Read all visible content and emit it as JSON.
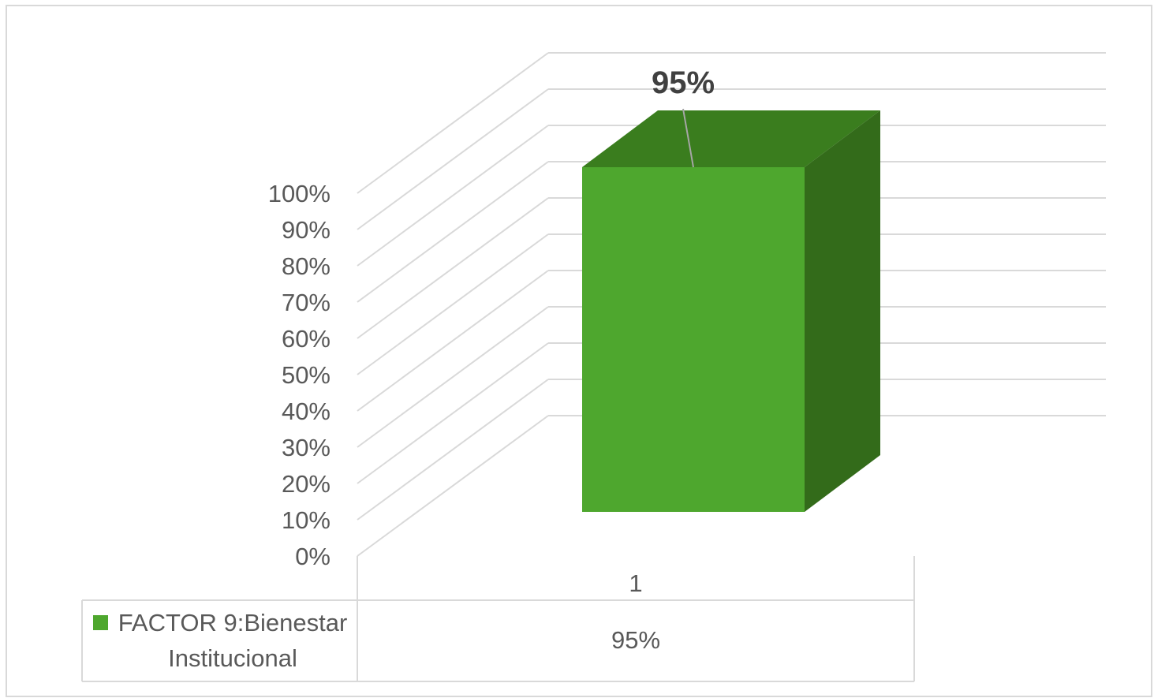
{
  "chart_data": {
    "type": "bar",
    "style": "3d-column-with-data-table",
    "categories": [
      "1"
    ],
    "series": [
      {
        "name": "FACTOR 9:Bienestar Institucional",
        "values": [
          95
        ],
        "color": "#4ea72e"
      }
    ],
    "value_format": "percent",
    "ylim": [
      0,
      100
    ],
    "y_ticks": [
      "0%",
      "10%",
      "20%",
      "30%",
      "40%",
      "50%",
      "60%",
      "70%",
      "80%",
      "90%",
      "100%"
    ],
    "data_labels": [
      "95%"
    ],
    "data_table": {
      "legend_lines": [
        "FACTOR 9:Bienestar",
        "Institucional"
      ],
      "cells": [
        "95%"
      ]
    },
    "grid": true,
    "legend": "data-table",
    "colors": {
      "front": "#4ea72e",
      "top": "#3a7d1e",
      "side": "#336b1a",
      "gridline": "#d9d9d9",
      "text": "#595959"
    }
  }
}
